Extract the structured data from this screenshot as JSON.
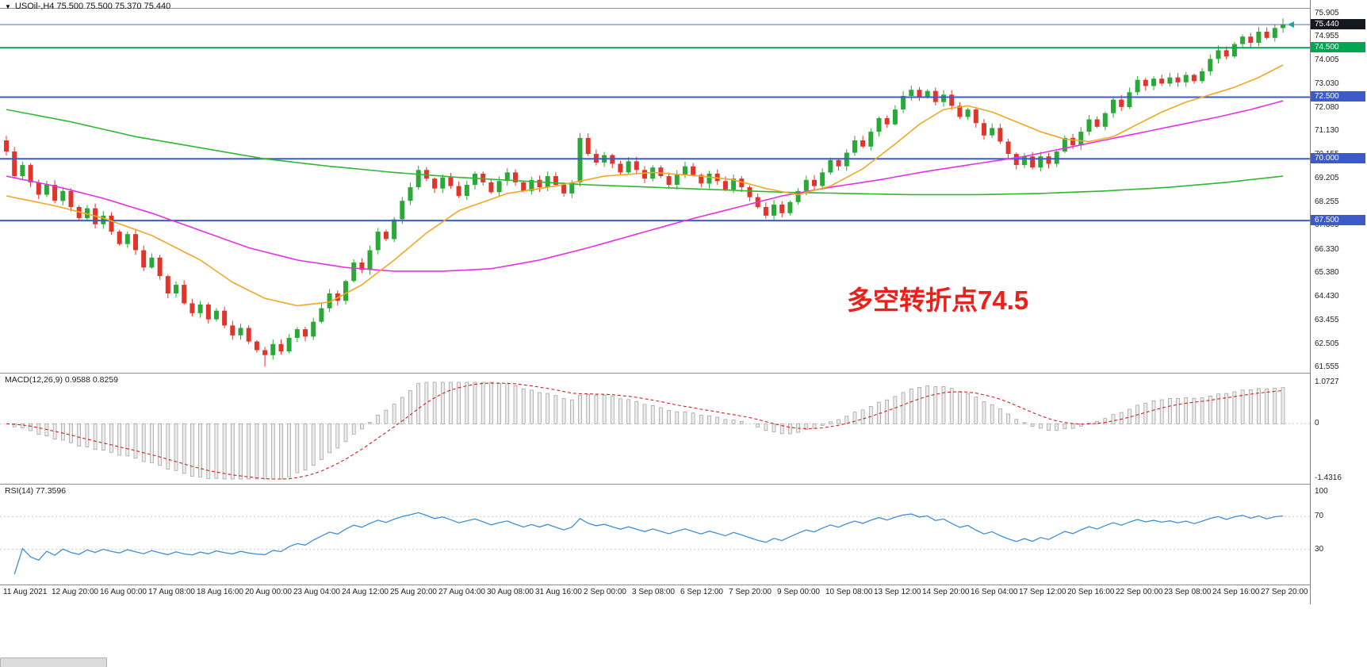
{
  "symbol_header": {
    "dropdown_glyph": "▼",
    "text": "USOil-,H4  75.500 75.500 75.370 75.440"
  },
  "annotation": {
    "text": "多空转折点74.5",
    "color": "#e8211a"
  },
  "price_axis": {
    "labels": [
      "75.905",
      "74.955",
      "74.005",
      "73.030",
      "72.080",
      "71.130",
      "70.155",
      "69.205",
      "68.255",
      "67.305",
      "66.330",
      "65.380",
      "64.430",
      "63.455",
      "62.505",
      "61.555"
    ],
    "badges": [
      {
        "text": "75.440",
        "value": 75.44,
        "bg": "#15181e"
      },
      {
        "text": "74.500",
        "value": 74.5,
        "bg": "#00a651"
      },
      {
        "text": "72.500",
        "value": 72.5,
        "bg": "#3c5bc8"
      },
      {
        "text": "70.000",
        "value": 70.0,
        "bg": "#3c5bc8"
      },
      {
        "text": "67.500",
        "value": 67.5,
        "bg": "#3c5bc8"
      }
    ]
  },
  "indicators": {
    "macd": {
      "label": "MACD(12,26,9) 0.9588 0.8259",
      "axis_top": "1.0727",
      "axis_zero": "0",
      "axis_bottom": "-1.4316"
    },
    "rsi": {
      "label": "RSI(14) 77.3596",
      "axis": [
        {
          "text": "100",
          "value": 100
        },
        {
          "text": "70",
          "value": 70
        },
        {
          "text": "30",
          "value": 30
        }
      ]
    }
  },
  "time_axis": {
    "labels": [
      "11 Aug 2021",
      "12 Aug 20:00",
      "16 Aug 00:00",
      "17 Aug 08:00",
      "18 Aug 16:00",
      "20 Aug 00:00",
      "23 Aug 04:00",
      "24 Aug 12:00",
      "25 Aug 20:00",
      "27 Aug 04:00",
      "30 Aug 08:00",
      "31 Aug 16:00",
      "2 Sep 00:00",
      "3 Sep 08:00",
      "6 Sep 12:00",
      "7 Sep 20:00",
      "9 Sep 00:00",
      "10 Sep 08:00",
      "13 Sep 12:00",
      "14 Sep 20:00",
      "16 Sep 04:00",
      "17 Sep 12:00",
      "20 Sep 16:00",
      "22 Sep 00:00",
      "23 Sep 08:00",
      "24 Sep 16:00",
      "27 Sep 20:00"
    ]
  },
  "chart_data": [
    {
      "type": "candlestick",
      "title": "USOil- H4",
      "ylim": [
        61.4,
        76.05
      ],
      "current_price": 75.44,
      "colors": {
        "up": "#2aa838",
        "down": "#e0352b",
        "current_line": "#4a6fae",
        "marker": "#18a7a0"
      },
      "levels": [
        {
          "value": 74.5,
          "color": "#00a651",
          "width": 2
        },
        {
          "value": 72.5,
          "color": "#3c5bc8",
          "width": 2
        },
        {
          "value": 70.0,
          "color": "#3c5bc8",
          "width": 2
        },
        {
          "value": 67.5,
          "color": "#3c5bc8",
          "width": 2
        }
      ],
      "moving_averages": [
        {
          "name": "slow-ma",
          "color": "#30b830",
          "points": [
            [
              0,
              72.0
            ],
            [
              8,
              71.5
            ],
            [
              16,
              70.9
            ],
            [
              24,
              70.45
            ],
            [
              32,
              70.0
            ],
            [
              40,
              69.7
            ],
            [
              48,
              69.45
            ],
            [
              56,
              69.25
            ],
            [
              64,
              69.1
            ],
            [
              72,
              68.95
            ],
            [
              80,
              68.85
            ],
            [
              88,
              68.75
            ],
            [
              96,
              68.65
            ],
            [
              104,
              68.6
            ],
            [
              112,
              68.55
            ],
            [
              120,
              68.55
            ],
            [
              128,
              68.6
            ],
            [
              136,
              68.7
            ],
            [
              144,
              68.85
            ],
            [
              151,
              69.05
            ],
            [
              158,
              69.3
            ]
          ]
        },
        {
          "name": "medium-ma",
          "color": "#e531e5",
          "points": [
            [
              0,
              69.3
            ],
            [
              6,
              68.9
            ],
            [
              12,
              68.4
            ],
            [
              18,
              67.8
            ],
            [
              24,
              67.1
            ],
            [
              30,
              66.4
            ],
            [
              36,
              65.9
            ],
            [
              42,
              65.6
            ],
            [
              48,
              65.45
            ],
            [
              54,
              65.45
            ],
            [
              60,
              65.55
            ],
            [
              66,
              65.9
            ],
            [
              72,
              66.4
            ],
            [
              78,
              66.95
            ],
            [
              84,
              67.5
            ],
            [
              90,
              68.0
            ],
            [
              96,
              68.5
            ],
            [
              102,
              68.85
            ],
            [
              108,
              69.15
            ],
            [
              114,
              69.5
            ],
            [
              120,
              69.8
            ],
            [
              126,
              70.1
            ],
            [
              132,
              70.5
            ],
            [
              138,
              70.9
            ],
            [
              144,
              71.3
            ],
            [
              150,
              71.7
            ],
            [
              154,
              72.0
            ],
            [
              158,
              72.35
            ]
          ]
        },
        {
          "name": "fast-ma",
          "color": "#f5a623",
          "points": [
            [
              0,
              68.5
            ],
            [
              6,
              68.1
            ],
            [
              12,
              67.6
            ],
            [
              18,
              66.9
            ],
            [
              24,
              65.9
            ],
            [
              28,
              65.0
            ],
            [
              32,
              64.35
            ],
            [
              36,
              64.05
            ],
            [
              40,
              64.2
            ],
            [
              44,
              64.9
            ],
            [
              48,
              65.9
            ],
            [
              52,
              67.0
            ],
            [
              56,
              67.9
            ],
            [
              62,
              68.6
            ],
            [
              68,
              68.9
            ],
            [
              74,
              69.3
            ],
            [
              80,
              69.45
            ],
            [
              86,
              69.3
            ],
            [
              90,
              69.15
            ],
            [
              94,
              68.8
            ],
            [
              98,
              68.55
            ],
            [
              102,
              68.9
            ],
            [
              106,
              69.6
            ],
            [
              110,
              70.6
            ],
            [
              113,
              71.4
            ],
            [
              116,
              72.0
            ],
            [
              119,
              72.15
            ],
            [
              122,
              71.9
            ],
            [
              125,
              71.5
            ],
            [
              128,
              71.1
            ],
            [
              131,
              70.8
            ],
            [
              134,
              70.7
            ],
            [
              137,
              70.9
            ],
            [
              140,
              71.4
            ],
            [
              143,
              71.9
            ],
            [
              146,
              72.3
            ],
            [
              149,
              72.6
            ],
            [
              152,
              72.9
            ],
            [
              155,
              73.3
            ],
            [
              158,
              73.8
            ]
          ]
        }
      ],
      "closes": [
        70.3,
        69.3,
        69.75,
        69.05,
        68.55,
        68.95,
        68.3,
        68.7,
        68.05,
        67.6,
        68.0,
        67.35,
        67.7,
        67.05,
        66.55,
        66.95,
        66.3,
        65.6,
        66.0,
        65.25,
        64.55,
        64.9,
        64.15,
        63.75,
        64.1,
        63.5,
        63.85,
        63.25,
        62.85,
        63.15,
        62.6,
        62.25,
        62.05,
        62.5,
        62.2,
        62.75,
        63.1,
        62.8,
        63.4,
        63.95,
        64.55,
        64.25,
        65.05,
        65.8,
        65.5,
        66.3,
        67.05,
        66.75,
        67.55,
        68.3,
        68.85,
        69.55,
        69.2,
        68.8,
        69.25,
        68.9,
        68.5,
        68.95,
        69.4,
        69.05,
        68.65,
        69.1,
        69.45,
        69.05,
        68.7,
        69.15,
        68.85,
        69.3,
        68.95,
        68.6,
        69.05,
        70.85,
        70.2,
        69.85,
        70.15,
        69.8,
        69.45,
        69.9,
        69.55,
        69.2,
        69.65,
        69.3,
        68.95,
        69.35,
        69.7,
        69.35,
        69.0,
        69.4,
        69.1,
        68.75,
        69.2,
        68.85,
        68.45,
        68.05,
        67.7,
        68.15,
        67.8,
        68.25,
        68.7,
        69.15,
        68.9,
        69.45,
        69.95,
        69.7,
        70.25,
        70.75,
        70.5,
        71.1,
        71.65,
        71.4,
        72.0,
        72.55,
        72.8,
        72.5,
        72.75,
        72.3,
        72.6,
        72.15,
        71.7,
        72.0,
        71.45,
        70.95,
        71.25,
        70.7,
        70.2,
        69.75,
        70.1,
        69.65,
        70.1,
        69.8,
        70.3,
        70.85,
        70.55,
        71.1,
        71.6,
        71.3,
        71.85,
        72.4,
        72.1,
        72.7,
        73.2,
        72.95,
        73.25,
        73.05,
        73.3,
        73.1,
        73.4,
        73.15,
        73.55,
        74.05,
        74.4,
        74.15,
        74.65,
        74.95,
        74.7,
        75.15,
        74.9,
        75.3,
        75.44
      ]
    },
    {
      "type": "macd",
      "params": [
        12,
        26,
        9
      ],
      "current_main": 0.9588,
      "current_signal": 0.8259,
      "range": [
        -1.4316,
        1.0727
      ],
      "colors": {
        "histogram_fill": "#ececec",
        "histogram_stroke": "#9a9a9a",
        "signal": "#d02020",
        "zero_line": "#c8c8c8"
      }
    },
    {
      "type": "rsi",
      "period": 14,
      "current": 77.3596,
      "levels": [
        70,
        30
      ],
      "colors": {
        "line": "#3f8fd6",
        "level_line": "#c8c8c8"
      }
    }
  ]
}
